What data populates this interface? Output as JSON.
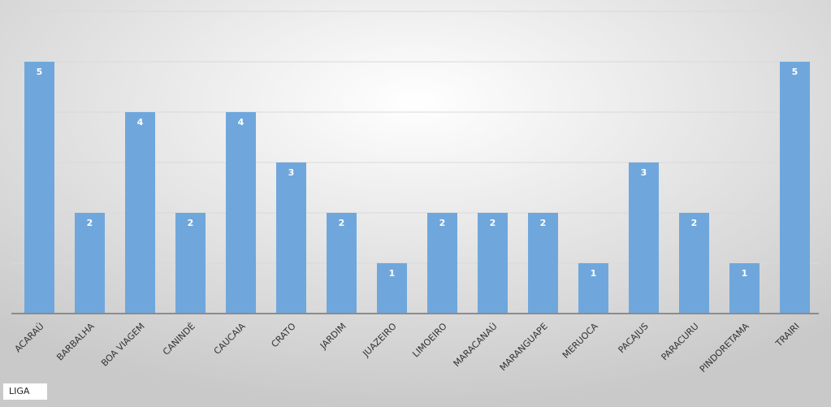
{
  "chart_data": {
    "type": "bar",
    "categories": [
      "ACARAÚ",
      "BARBALHA",
      "BOA VIAGEM",
      "CANINDÉ",
      "CAUCAIA",
      "CRATO",
      "JARDIM",
      "JUAZEIRO",
      "LIMOEIRO",
      "MARACANAÚ",
      "MARANGUAPE",
      "MERUOCA",
      "PACAJUS",
      "PARACURU",
      "PINDORETAMA",
      "TRAIRI"
    ],
    "values": [
      5,
      2,
      4,
      2,
      4,
      3,
      2,
      1,
      2,
      2,
      2,
      1,
      3,
      2,
      1,
      5
    ],
    "color": "#6fa7dc",
    "ylim": [
      0,
      6
    ],
    "yticks": [
      0,
      1,
      2,
      3,
      4,
      5,
      6
    ],
    "grid": true,
    "legend": "LIGA"
  }
}
